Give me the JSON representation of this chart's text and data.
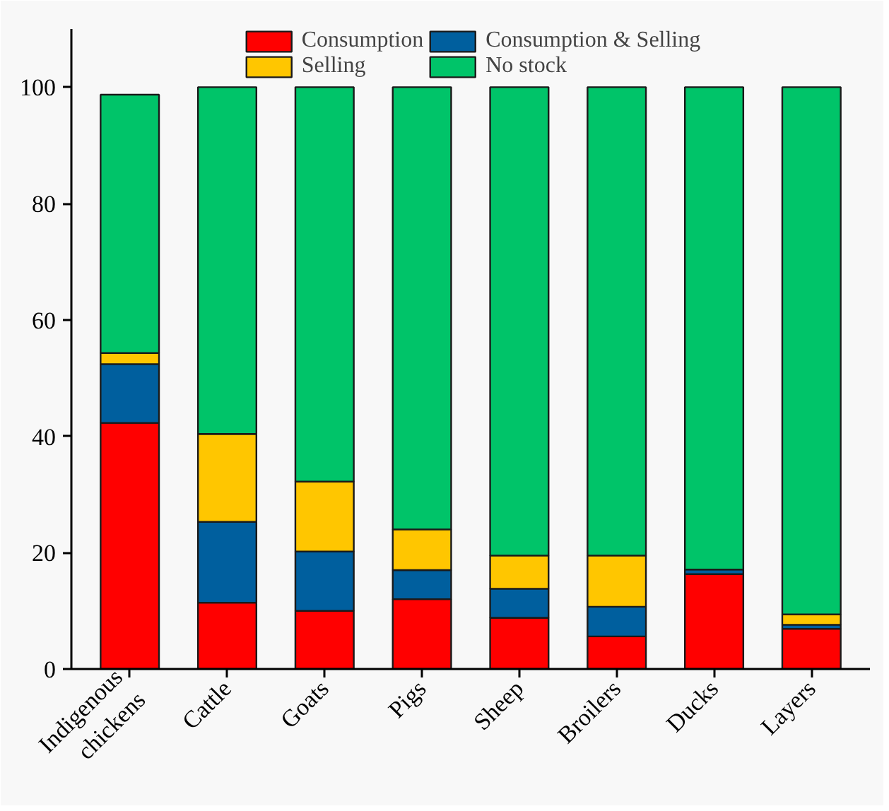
{
  "chart_data": {
    "type": "bar",
    "stacked": true,
    "categories": [
      "Indigenous\nchickens",
      "Cattle",
      "Goats",
      "Pigs",
      "Sheep",
      "Broilers",
      "Ducks",
      "Layers"
    ],
    "series": [
      {
        "name": "Consumption",
        "color": "#ff0000",
        "values": [
          42.3,
          11.4,
          10.0,
          12.0,
          8.8,
          5.6,
          16.3,
          6.9
        ]
      },
      {
        "name": "Consumption & Selling",
        "color": "#005f9e",
        "values": [
          10.1,
          13.9,
          10.2,
          5.0,
          5.0,
          5.1,
          0.8,
          0.7
        ]
      },
      {
        "name": "Selling",
        "color": "#ffc600",
        "values": [
          1.9,
          15.1,
          12.0,
          7.0,
          5.7,
          8.8,
          0,
          1.8
        ]
      },
      {
        "name": "No stock",
        "color": "#00c469",
        "values": [
          44.4,
          59.6,
          67.8,
          76.0,
          80.5,
          80.5,
          82.9,
          90.6
        ]
      }
    ],
    "ylim": [
      0,
      110
    ],
    "yticks": [
      0,
      20,
      40,
      60,
      80,
      100
    ],
    "grid": false,
    "legend": "top"
  }
}
